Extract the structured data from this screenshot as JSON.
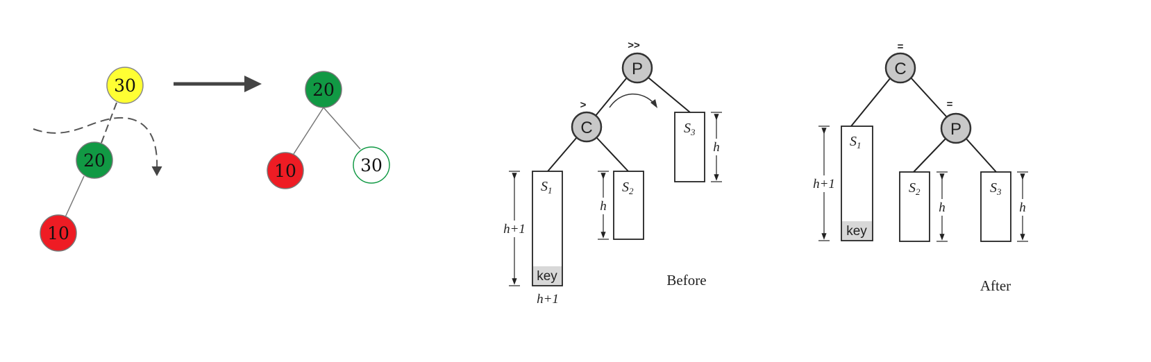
{
  "ll_example": {
    "before": {
      "root": "30",
      "middle": "20",
      "leaf": "10"
    },
    "after": {
      "root": "20",
      "left": "10",
      "right": "30"
    }
  },
  "lr_rotation": {
    "before": {
      "parent": "P",
      "child": "C",
      "parent_badge": ">>",
      "child_badge": ">",
      "s1": "S",
      "s1_sub": "1",
      "s2": "S",
      "s2_sub": "2",
      "s3": "S",
      "s3_sub": "3",
      "key": "key",
      "s1_height": "h+1",
      "s1_bottom": "h+1",
      "s2_height": "h",
      "s3_height": "h",
      "caption": "Before"
    },
    "after": {
      "root": "C",
      "child": "P",
      "root_badge": "=",
      "child_badge": "=",
      "s1": "S",
      "s1_sub": "1",
      "s2": "S",
      "s2_sub": "2",
      "s3": "S",
      "s3_sub": "3",
      "key": "key",
      "s1_height": "h+1",
      "s2_height": "h",
      "s3_height": "h",
      "caption": "After"
    }
  },
  "colors": {
    "yellow": "#ffff33",
    "green": "#119944",
    "red": "#ee1c24",
    "white": "#ffffff",
    "gray_node": "#c8c8c8",
    "key_fill": "#d8d8d8",
    "arrow": "#444444"
  }
}
